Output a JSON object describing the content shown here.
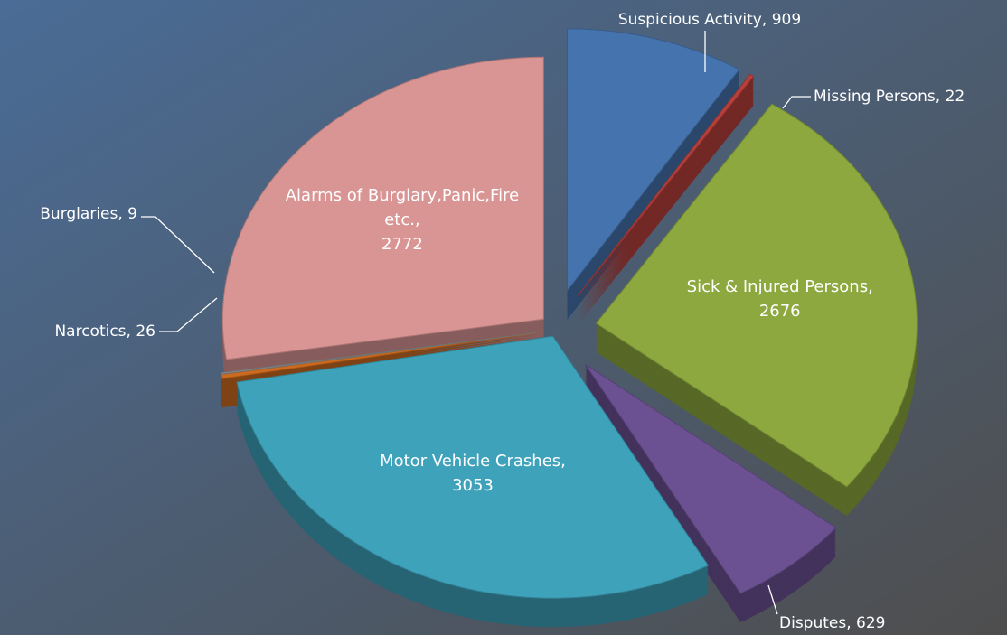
{
  "chart_data": {
    "type": "pie",
    "categories": [
      "Suspicious Activity",
      "Missing Persons",
      "Sick & Injured Persons",
      "Disputes",
      "Motor Vehicle Crashes",
      "Narcotics",
      "Burglaries",
      "Alarms of Burglary,Panic,Fire etc."
    ],
    "values": [
      909,
      22,
      2676,
      629,
      3053,
      26,
      9,
      2772
    ],
    "colors": [
      "#4573ad",
      "#b8403c",
      "#8ca83f",
      "#6c5192",
      "#3ea2bb",
      "#cc6a20",
      "#8e8e8e",
      "#d99594"
    ]
  }
}
